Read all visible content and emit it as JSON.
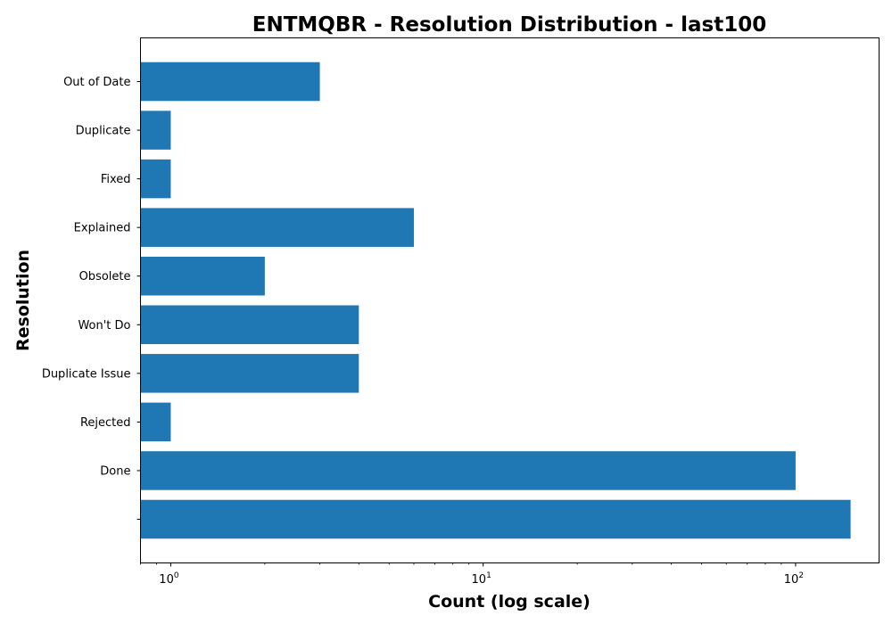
{
  "chart_data": {
    "type": "bar",
    "orientation": "horizontal",
    "title": "ENTMQBR - Resolution Distribution - last100",
    "xlabel": "Count (log scale)",
    "ylabel": "Resolution",
    "xscale": "log",
    "xlim": [
      0.8,
      185
    ],
    "categories": [
      "",
      "Done",
      "Rejected",
      "Duplicate Issue",
      "Won't Do",
      "Obsolete",
      "Explained",
      "Fixed",
      "Duplicate",
      "Out of Date"
    ],
    "values": [
      150,
      100,
      1,
      4,
      4,
      2,
      6,
      1,
      1,
      3
    ],
    "color": "#1f77b4",
    "x_ticks": [
      {
        "base": "10",
        "exp": "0",
        "value": 1
      },
      {
        "base": "10",
        "exp": "1",
        "value": 10
      },
      {
        "base": "10",
        "exp": "2",
        "value": 100
      }
    ],
    "grid": false,
    "legend": "none"
  }
}
